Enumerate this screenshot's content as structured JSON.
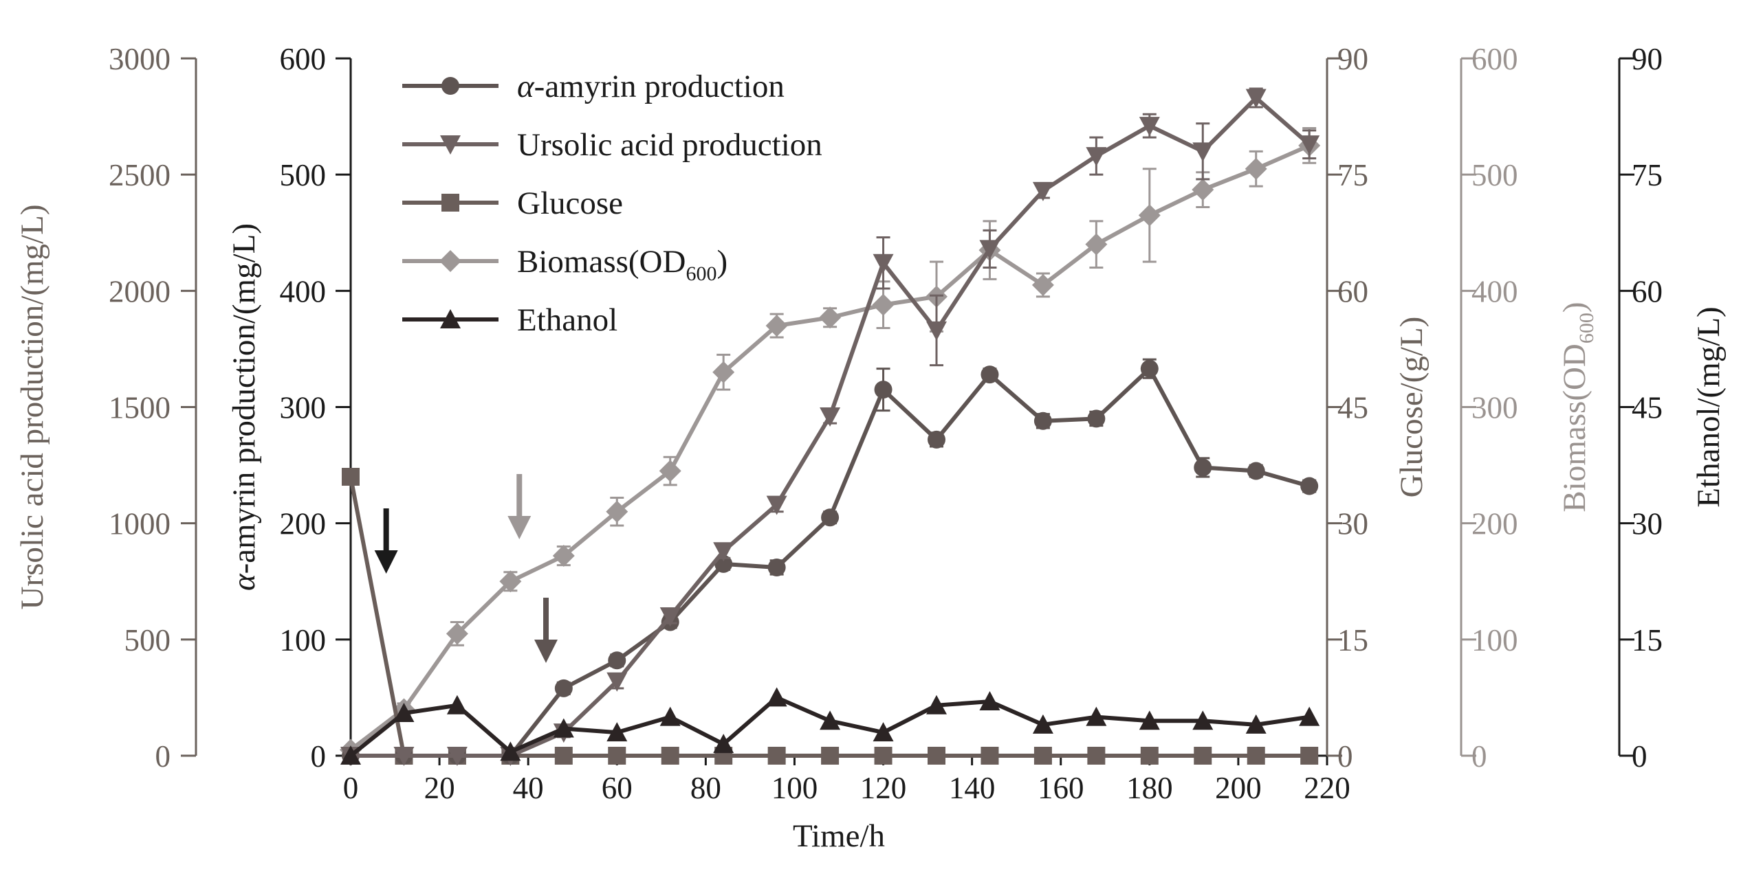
{
  "chart_data": {
    "type": "line",
    "title": "",
    "xlabel": "Time/h",
    "xlim": [
      0,
      220
    ],
    "xticks": [
      "0",
      "20",
      "40",
      "60",
      "80",
      "100",
      "120",
      "140",
      "160",
      "180",
      "200",
      "220"
    ],
    "axes": [
      {
        "id": "ursolic",
        "label": "Ursolic acid production/(mg/L)",
        "ylim": [
          0,
          3000
        ],
        "ticks": [
          "0",
          "500",
          "1000",
          "1500",
          "2000",
          "2500",
          "3000"
        ],
        "color": "#6b625c"
      },
      {
        "id": "amyrin",
        "label_italic": "α",
        "label_rest": "-amyrin production/(mg/L)",
        "ylim": [
          0,
          600
        ],
        "ticks": [
          "0",
          "100",
          "200",
          "300",
          "400",
          "500",
          "600"
        ],
        "color": "#1a1a1a"
      },
      {
        "id": "glucose",
        "label": "Glucose/(g/L)",
        "ylim": [
          0,
          90
        ],
        "ticks": [
          "0",
          "15",
          "30",
          "45",
          "60",
          "75",
          "90"
        ],
        "color": "#6b625c"
      },
      {
        "id": "biomass",
        "label_main": "Biomass(OD",
        "label_sub": "600",
        "label_end": ")",
        "ylim": [
          0,
          600
        ],
        "ticks": [
          "0",
          "100",
          "200",
          "300",
          "400",
          "500",
          "600"
        ],
        "color": "#9a9390"
      },
      {
        "id": "ethanol",
        "label": "Ethanol/(mg/L)",
        "ylim": [
          0,
          90
        ],
        "ticks": [
          "0",
          "15",
          "30",
          "45",
          "60",
          "75",
          "90"
        ],
        "color": "#1a1a1a"
      }
    ],
    "series": [
      {
        "name_italic": "α",
        "name_rest": "-amyrin production",
        "axis": "amyrin",
        "marker": "circle",
        "color": "#5e5452",
        "x": [
          0,
          12,
          24,
          36,
          48,
          60,
          72,
          84,
          96,
          108,
          120,
          132,
          144,
          156,
          168,
          180,
          192,
          204,
          216
        ],
        "y": [
          0,
          0,
          0,
          0,
          58,
          82,
          115,
          165,
          162,
          205,
          315,
          272,
          328,
          288,
          290,
          333,
          248,
          245,
          232
        ],
        "err": [
          0,
          0,
          0,
          0,
          5,
          5,
          5,
          5,
          6,
          5,
          18,
          6,
          5,
          6,
          6,
          8,
          8,
          5,
          5
        ]
      },
      {
        "name": "Ursolic acid production",
        "axis": "ursolic",
        "marker": "triangle-down",
        "color": "#6e6262",
        "x": [
          0,
          12,
          24,
          36,
          48,
          60,
          72,
          84,
          96,
          108,
          120,
          132,
          144,
          156,
          168,
          180,
          192,
          204,
          216
        ],
        "y": [
          0,
          0,
          0,
          0,
          100,
          320,
          600,
          880,
          1080,
          1460,
          2120,
          1830,
          2180,
          2430,
          2580,
          2710,
          2600,
          2830,
          2630
        ],
        "err": [
          0,
          0,
          0,
          0,
          20,
          30,
          30,
          30,
          30,
          30,
          110,
          150,
          80,
          30,
          80,
          50,
          120,
          40,
          60
        ]
      },
      {
        "name": "Glucose",
        "axis": "glucose",
        "marker": "square",
        "color": "#6a5e5a",
        "x": [
          0,
          12,
          24,
          36,
          48,
          60,
          72,
          84,
          96,
          108,
          120,
          132,
          144,
          156,
          168,
          180,
          192,
          204,
          216
        ],
        "y": [
          36,
          0,
          0,
          0,
          0,
          0,
          0,
          0,
          0,
          0,
          0,
          0,
          0,
          0,
          0,
          0,
          0,
          0,
          0
        ],
        "err": []
      },
      {
        "name_main": "Biomass(OD",
        "name_sub": "600",
        "name_end": ")",
        "axis": "biomass",
        "marker": "diamond",
        "color": "#9d9796",
        "x": [
          0,
          12,
          24,
          36,
          48,
          60,
          72,
          84,
          96,
          108,
          120,
          132,
          144,
          156,
          168,
          180,
          192,
          204,
          216
        ],
        "y": [
          5,
          40,
          105,
          150,
          172,
          210,
          245,
          330,
          370,
          377,
          388,
          395,
          435,
          405,
          440,
          465,
          487,
          505,
          525
        ],
        "err": [
          0,
          5,
          10,
          8,
          8,
          12,
          12,
          15,
          10,
          8,
          20,
          30,
          25,
          10,
          20,
          40,
          15,
          15,
          15
        ]
      },
      {
        "name": "Ethanol",
        "axis": "ethanol",
        "marker": "triangle-up",
        "color": "#2b2424",
        "x": [
          0,
          12,
          24,
          36,
          48,
          60,
          72,
          84,
          96,
          108,
          120,
          132,
          144,
          156,
          168,
          180,
          192,
          204,
          216
        ],
        "y": [
          0,
          5.5,
          6.5,
          0.5,
          3.5,
          3,
          5,
          1.5,
          7.5,
          4.5,
          3,
          6.5,
          7,
          4,
          5,
          4.5,
          4.5,
          4,
          5
        ],
        "err": []
      }
    ],
    "annotations": [
      {
        "type": "arrow",
        "x": 8,
        "color": "#1a1a1a"
      },
      {
        "type": "arrow",
        "x": 38,
        "color": "#9d9796"
      },
      {
        "type": "arrow",
        "x": 44,
        "color": "#5e5452"
      }
    ]
  }
}
